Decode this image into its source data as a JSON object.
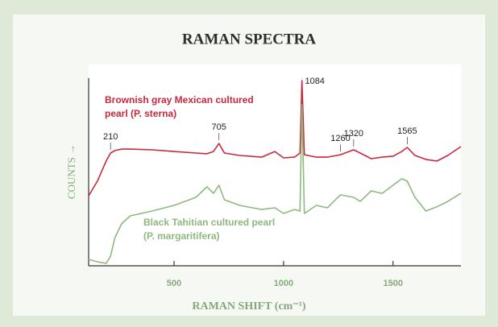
{
  "chart_data": {
    "type": "line",
    "title": "RAMAN SPECTRA",
    "x_label": "RAMAN SHIFT (cm⁻¹)",
    "y_label": "COUNTS →",
    "x": [
      110,
      150,
      190,
      210,
      230,
      260,
      300,
      400,
      500,
      600,
      650,
      680,
      705,
      730,
      800,
      900,
      960,
      1000,
      1050,
      1075,
      1084,
      1095,
      1150,
      1200,
      1260,
      1320,
      1350,
      1400,
      1450,
      1500,
      1540,
      1565,
      1600,
      1650,
      1700,
      1750,
      1810
    ],
    "series": [
      {
        "name": "Brownish gray Mexican cultured pearl (P. sterna)",
        "color": "#c8283c",
        "values": [
          37.3,
          45.1,
          55.8,
          60.1,
          61.4,
          62.2,
          62.2,
          61.8,
          60.9,
          60.1,
          59.7,
          60.9,
          65.2,
          60.1,
          58.8,
          57.9,
          60.9,
          57.5,
          57.9,
          60.1,
          98.7,
          59.2,
          57.9,
          57.9,
          59.2,
          61.8,
          60.1,
          57.1,
          57.9,
          58.4,
          60.9,
          63.1,
          58.8,
          56.7,
          55.8,
          58.8,
          63.5
        ]
      },
      {
        "name": "Black Tahitian cultured pearl (P. margaritifera)",
        "color": "#8fb87f",
        "values": [
          3.4,
          2.1,
          1.3,
          5.2,
          15.0,
          22.3,
          26.6,
          29.2,
          32.2,
          36.5,
          42.1,
          38.6,
          42.9,
          35.2,
          32.2,
          30.0,
          30.9,
          27.9,
          30.0,
          29.2,
          85.8,
          27.9,
          32.2,
          30.9,
          37.8,
          36.5,
          34.3,
          39.9,
          38.6,
          42.9,
          46.4,
          45.1,
          36.5,
          29.2,
          31.4,
          34.3,
          38.6
        ]
      }
    ],
    "peak_labels": [
      210,
      705,
      1084,
      1260,
      1320,
      1565
    ],
    "xlim": [
      110,
      1810
    ],
    "ylim": [
      0,
      100
    ],
    "xticks": [
      500,
      1000,
      1500
    ]
  }
}
